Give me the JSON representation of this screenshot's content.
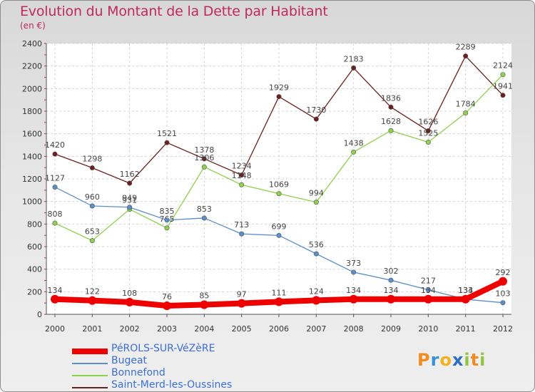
{
  "title": "Evolution du Montant de la Dette par Habitant",
  "subtitle": "(en €)",
  "logo": {
    "p": "P",
    "r": "r",
    "o": "o",
    "x": "x",
    "i": "i",
    "t": "t",
    "i2": "i"
  },
  "chart_data": {
    "type": "line",
    "title": "Evolution du Montant de la Dette par Habitant",
    "ylabel": "(en €)",
    "xlabel": "",
    "ylim": [
      0,
      2400
    ],
    "yticks": [
      "0",
      "200",
      "400",
      "600",
      "800",
      "1000",
      "1200",
      "1400",
      "1600",
      "1800",
      "2000",
      "2200",
      "2400"
    ],
    "categories": [
      "2000",
      "2001",
      "2002",
      "2003",
      "2004",
      "2005",
      "2006",
      "2007",
      "2008",
      "2009",
      "2010",
      "2011",
      "2012"
    ],
    "series": [
      {
        "name": "Saint-Merd-les-Oussines",
        "color": "#6b1f1f",
        "values": [
          1420,
          1298,
          1162,
          1521,
          1378,
          1234,
          1929,
          1730,
          2183,
          1836,
          1626,
          2289,
          1941
        ]
      },
      {
        "name": "Bonnefond",
        "color": "#8ed14a",
        "values": [
          808,
          653,
          931,
          765,
          1306,
          1148,
          1069,
          994,
          1438,
          1628,
          1525,
          1784,
          2124
        ]
      },
      {
        "name": "Bugeat",
        "color": "#5b8fc9",
        "values": [
          1127,
          960,
          949,
          835,
          853,
          713,
          699,
          536,
          373,
          302,
          217,
          133,
          103
        ]
      },
      {
        "name": "PéROLS-SUR-VéZèRE",
        "color": "#ee0000",
        "values": [
          134,
          122,
          108,
          76,
          85,
          97,
          111,
          124,
          134,
          134,
          134,
          134,
          292
        ]
      }
    ],
    "legend": [
      "PéROLS-SUR-VéZèRE",
      "Bugeat",
      "Bonnefond",
      "Saint-Merd-les-Oussines"
    ],
    "legend_position": "bottom-left"
  }
}
